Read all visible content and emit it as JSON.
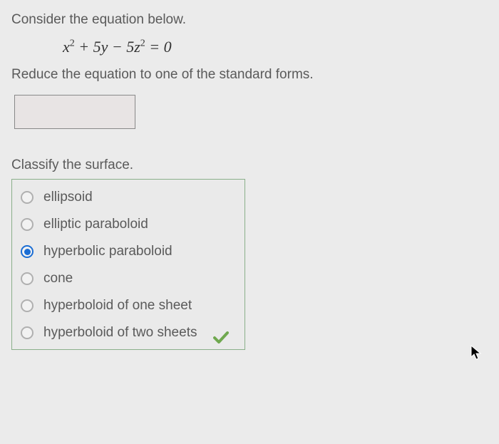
{
  "question": {
    "intro": "Consider the equation below.",
    "equation_html": "x<sup>2</sup> + 5y − 5z<sup>2</sup> = 0",
    "instruction": "Reduce the equation to one of the standard forms.",
    "classify_prompt": "Classify the surface."
  },
  "input": {
    "value": ""
  },
  "options": [
    {
      "label": "ellipsoid",
      "selected": false
    },
    {
      "label": "elliptic paraboloid",
      "selected": false
    },
    {
      "label": "hyperbolic paraboloid",
      "selected": true
    },
    {
      "label": "cone",
      "selected": false
    },
    {
      "label": "hyperboloid of one sheet",
      "selected": false
    },
    {
      "label": "hyperboloid of two sheets",
      "selected": false
    }
  ],
  "colors": {
    "background": "#ebebeb",
    "text": "#5a5a5a",
    "option_border": "#8aaf8a",
    "radio_selected": "#1a6dd4",
    "check": "#6fa84f"
  }
}
